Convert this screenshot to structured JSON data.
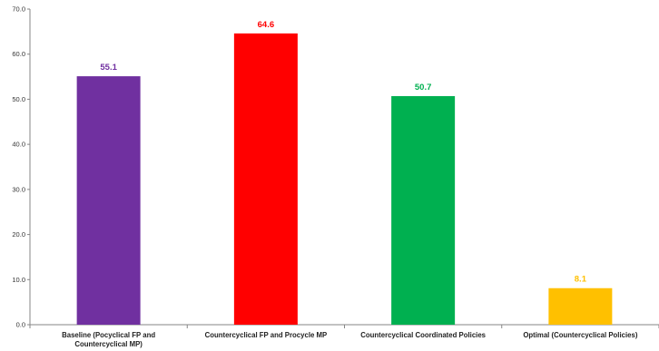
{
  "chart_data": {
    "type": "bar",
    "title": "",
    "xlabel": "",
    "ylabel": "",
    "ylim": [
      0,
      70
    ],
    "y_ticks": [
      "0.0",
      "10.0",
      "20.0",
      "30.0",
      "40.0",
      "50.0",
      "60.0",
      "70.0"
    ],
    "grid": false,
    "legend": "none",
    "categories": [
      [
        "Baseline (Pocyclical FP and",
        "Countercyclical MP)"
      ],
      [
        "Countercyclical FP and Procycle MP"
      ],
      [
        "Countercyclical Coordinated Policies"
      ],
      [
        "Optimal (Countercyclical Policies)"
      ]
    ],
    "values": [
      55.1,
      64.6,
      50.7,
      8.1
    ],
    "value_labels": [
      "55.1",
      "64.6",
      "50.7",
      "8.1"
    ],
    "colors": [
      "#7030A0",
      "#FF0000",
      "#00B050",
      "#FFC000"
    ]
  }
}
